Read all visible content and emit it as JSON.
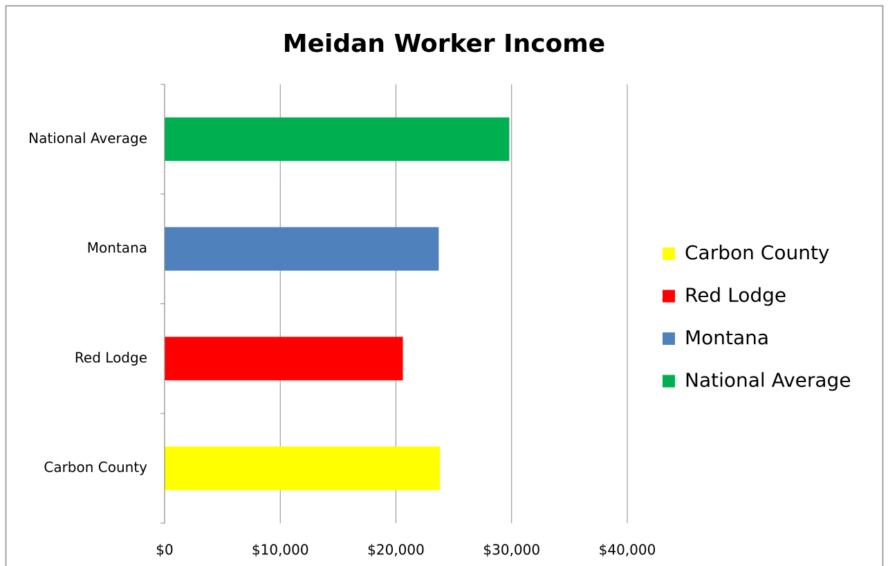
{
  "chart_data": {
    "type": "bar",
    "orientation": "horizontal",
    "title": "Meidan Worker Income",
    "categories": [
      "Carbon County",
      "Red Lodge",
      "Montana",
      "National Average"
    ],
    "values": [
      23800,
      20600,
      23700,
      29800
    ],
    "colors": [
      "#ffff00",
      "#ff0000",
      "#4f81bd",
      "#00b050"
    ],
    "xlim": [
      0,
      40000
    ],
    "xticks": [
      {
        "value": 0,
        "label": "$0"
      },
      {
        "value": 10000,
        "label": "$10,000"
      },
      {
        "value": 20000,
        "label": "$20,000"
      },
      {
        "value": 30000,
        "label": "$30,000"
      },
      {
        "value": 40000,
        "label": "$40,000"
      }
    ],
    "grid": true,
    "legend": "right"
  }
}
